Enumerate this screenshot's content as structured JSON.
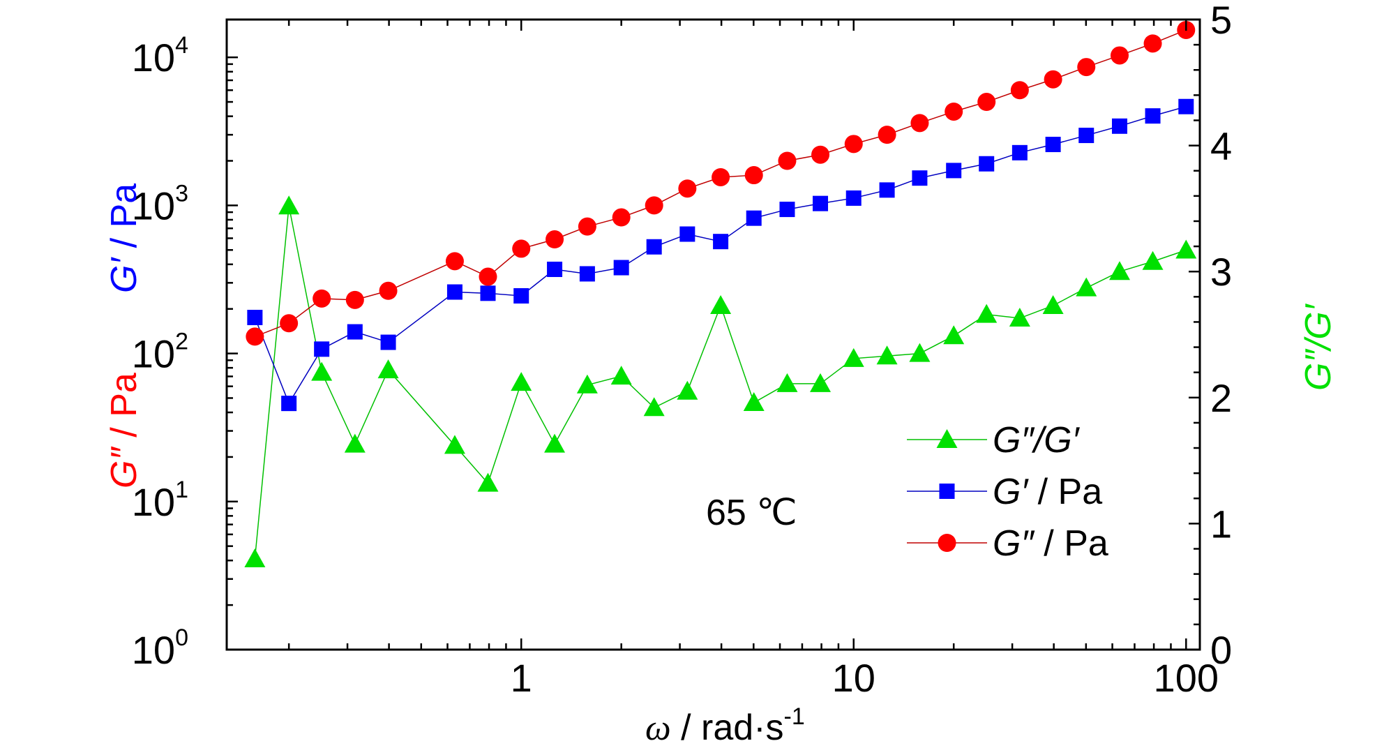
{
  "chart_data": {
    "type": "scatter",
    "annotation": "65 ℃",
    "x_axis": {
      "title_symbol": "ω",
      "title_rest": " / rad·s",
      "title_sup": "-1",
      "scale": "log",
      "range": [
        0.13,
        110
      ],
      "ticks": [
        {
          "value": 1,
          "label": "1"
        },
        {
          "value": 10,
          "label": "10"
        },
        {
          "value": 100,
          "label": "100"
        }
      ]
    },
    "y_left": {
      "scale": "log",
      "range": [
        1,
        18000
      ],
      "label_gpp": {
        "symbol": "G″",
        "unit": " / Pa",
        "color": "#ff0000"
      },
      "label_gp": {
        "symbol": "G′",
        "unit": " / Pa",
        "color": "#0000ff"
      },
      "ticks": [
        {
          "value": 1,
          "base": "10",
          "exp": "0"
        },
        {
          "value": 10,
          "base": "10",
          "exp": "1"
        },
        {
          "value": 100,
          "base": "10",
          "exp": "2"
        },
        {
          "value": 1000,
          "base": "10",
          "exp": "3"
        },
        {
          "value": 10000,
          "base": "10",
          "exp": "4"
        }
      ]
    },
    "y_right": {
      "scale": "linear",
      "range": [
        0,
        5
      ],
      "label": "G″/G′",
      "color": "#00e000",
      "ticks": [
        {
          "value": 0,
          "label": "0"
        },
        {
          "value": 1,
          "label": "1"
        },
        {
          "value": 2,
          "label": "2"
        },
        {
          "value": 3,
          "label": "3"
        },
        {
          "value": 4,
          "label": "4"
        },
        {
          "value": 5,
          "label": "5"
        }
      ]
    },
    "legend": {
      "placement": "lower-right",
      "entries": [
        {
          "symbol": "G″/G′",
          "rest": "",
          "marker": "triangle",
          "color": "#00e000",
          "line": "#00c000"
        },
        {
          "symbol": "G′",
          "rest": " / Pa",
          "marker": "square",
          "color": "#0000ff",
          "line": "#0000c0"
        },
        {
          "symbol": "G″",
          "rest": " / Pa",
          "marker": "circle",
          "color": "#ff0000",
          "line": "#c00000"
        }
      ]
    },
    "series": [
      {
        "name": "G″ / Pa",
        "axis": "left",
        "marker": "circle",
        "color": "#ff0000",
        "line_color": "#c00000",
        "x": [
          0.158,
          0.2,
          0.251,
          0.316,
          0.398,
          0.631,
          0.794,
          1.0,
          1.26,
          1.58,
          2.0,
          2.51,
          3.16,
          3.98,
          5.01,
          6.31,
          7.94,
          10.0,
          12.6,
          15.8,
          20.0,
          25.1,
          31.6,
          39.8,
          50.1,
          63.1,
          79.4,
          100
        ],
        "y": [
          130,
          160,
          235,
          230,
          265,
          420,
          330,
          510,
          590,
          720,
          830,
          1000,
          1300,
          1550,
          1600,
          2000,
          2200,
          2600,
          3000,
          3600,
          4300,
          5000,
          6000,
          7100,
          8600,
          10300,
          12400,
          15300
        ]
      },
      {
        "name": "G′ / Pa",
        "axis": "left",
        "marker": "square",
        "color": "#0000ff",
        "line_color": "#0000c0",
        "x": [
          0.158,
          0.2,
          0.251,
          0.316,
          0.398,
          0.631,
          0.794,
          1.0,
          1.26,
          1.58,
          2.0,
          2.51,
          3.16,
          3.98,
          5.01,
          6.31,
          7.94,
          10.0,
          12.6,
          15.8,
          20.0,
          25.1,
          31.6,
          39.8,
          50.1,
          63.1,
          79.4,
          100
        ],
        "y": [
          175,
          46,
          107,
          140,
          119,
          260,
          255,
          245,
          370,
          345,
          380,
          525,
          640,
          570,
          820,
          940,
          1030,
          1120,
          1270,
          1530,
          1720,
          1910,
          2270,
          2580,
          2970,
          3430,
          4020,
          4650
        ]
      },
      {
        "name": "G″/G′",
        "axis": "right",
        "marker": "triangle",
        "color": "#00e000",
        "line_color": "#00c000",
        "x": [
          0.158,
          0.2,
          0.251,
          0.316,
          0.398,
          0.631,
          0.794,
          1.0,
          1.26,
          1.58,
          2.0,
          2.51,
          3.16,
          3.98,
          5.01,
          6.31,
          7.94,
          10.0,
          12.6,
          15.8,
          20.0,
          25.1,
          31.6,
          39.8,
          50.1,
          63.1,
          79.4,
          100
        ],
        "y": [
          0.72,
          3.52,
          2.2,
          1.63,
          2.22,
          1.62,
          1.32,
          2.12,
          1.63,
          2.1,
          2.17,
          1.92,
          2.05,
          2.73,
          1.96,
          2.11,
          2.11,
          2.31,
          2.33,
          2.35,
          2.49,
          2.66,
          2.63,
          2.73,
          2.87,
          3.0,
          3.08,
          3.17
        ]
      }
    ]
  }
}
